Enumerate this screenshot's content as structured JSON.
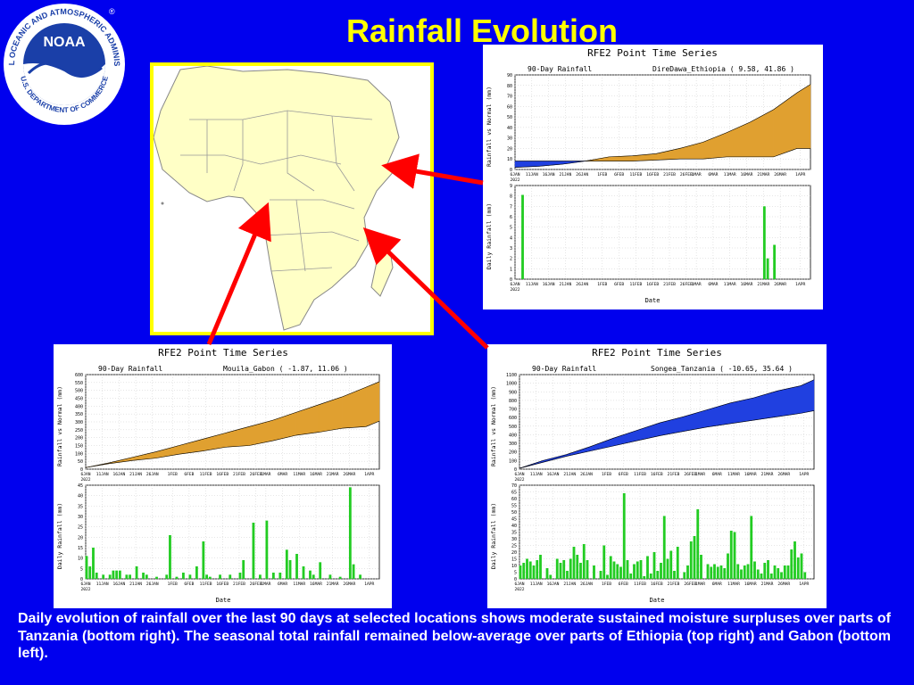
{
  "page": {
    "title": "Rainfall Evolution",
    "caption": "Daily evolution of rainfall over the last 90 days at selected locations shows moderate sustained moisture surpluses over parts of Tanzania (bottom right). The seasonal total rainfall remained below-average over parts of Ethiopia (top right) and Gabon (bottom left).",
    "logo": {
      "text": "NATIONAL OCEANIC AND ATMOSPHERIC ADMINISTRATION",
      "bottom_text": "U.S. DEPARTMENT OF COMMERCE",
      "center": "NOAA",
      "mark": "®"
    },
    "map_icon": "africa-map"
  },
  "colors": {
    "background": "#0000ee",
    "title": "#ffff00",
    "map_frame": "#ffff00",
    "land": "#ffffc6",
    "arrow": "#ff0000",
    "deficit_fill": "#e0a030",
    "surplus_fill": "#2040e0",
    "daily_bar": "#22cc22"
  },
  "chart_data": [
    {
      "id": "ethiopia",
      "type": "area",
      "panel_title": "RFE2 Point Time Series",
      "subtitle_left": "90-Day Rainfall",
      "location": "DireDawa_Ethiopia  ( 9.58, 41.86 )",
      "top": {
        "ylabel": "Rainfall vs Normal (mm)",
        "ylim": [
          0,
          90
        ],
        "yticks": [
          "0",
          "10",
          "20",
          "30",
          "40",
          "50",
          "60",
          "70",
          "80",
          "90"
        ],
        "dates": [
          "6JAN",
          "13JAN",
          "20JAN",
          "27JAN",
          "3FEB",
          "10FEB",
          "17FEB",
          "24FEB",
          "3MAR",
          "10MAR",
          "17MAR",
          "24MAR",
          "31MAR",
          "5APR"
        ],
        "actual": [
          8,
          8,
          8,
          8,
          8,
          8,
          9,
          10,
          10,
          12,
          12,
          12,
          20,
          20
        ],
        "normal": [
          2,
          3,
          5,
          8,
          12,
          13,
          15,
          20,
          26,
          35,
          45,
          57,
          73,
          81
        ]
      },
      "bottom": {
        "ylabel": "Daily Rainfall (mm)",
        "ylim": [
          0,
          9
        ],
        "yticks": [
          "0",
          "1",
          "2",
          "3",
          "4",
          "5",
          "6",
          "7",
          "8",
          "9"
        ],
        "days": [
          2,
          74,
          75,
          77
        ],
        "values": [
          8.1,
          7.0,
          2.0,
          3.3
        ]
      },
      "xlabel": "Date",
      "xticks": [
        "6JAN",
        "11JAN",
        "16JAN",
        "21JAN",
        "26JAN",
        "1FEB",
        "6FEB",
        "11FEB",
        "16FEB",
        "21FEB",
        "26FEB",
        "1MAR",
        "6MAR",
        "11MAR",
        "16MAR",
        "21MAR",
        "26MAR",
        "1APR"
      ],
      "xtick_year": "2022",
      "xtick_days": [
        0,
        5,
        10,
        15,
        20,
        26,
        31,
        36,
        41,
        46,
        51,
        54,
        59,
        64,
        69,
        74,
        79,
        85
      ]
    },
    {
      "id": "gabon",
      "type": "area",
      "panel_title": "RFE2 Point Time Series",
      "subtitle_left": "90-Day Rainfall",
      "location": "Mouila_Gabon  ( -1.87, 11.06 )",
      "top": {
        "ylabel": "Rainfall vs Normal (mm)",
        "ylim": [
          0,
          600
        ],
        "yticks": [
          "0",
          "50",
          "100",
          "150",
          "200",
          "250",
          "300",
          "350",
          "400",
          "450",
          "500",
          "550",
          "600"
        ],
        "dates": [
          "6JAN",
          "13JAN",
          "20JAN",
          "27JAN",
          "3FEB",
          "10FEB",
          "17FEB",
          "24FEB",
          "3MAR",
          "10MAR",
          "17MAR",
          "24MAR",
          "31MAR",
          "5APR"
        ],
        "actual": [
          10,
          35,
          55,
          70,
          95,
          115,
          140,
          150,
          180,
          215,
          235,
          260,
          270,
          305
        ],
        "normal": [
          10,
          40,
          75,
          110,
          150,
          190,
          230,
          270,
          310,
          360,
          410,
          460,
          520,
          555
        ]
      },
      "bottom": {
        "ylabel": "Daily Rainfall (mm)",
        "ylim": [
          0,
          45
        ],
        "yticks": [
          "0",
          "5",
          "10",
          "15",
          "20",
          "25",
          "30",
          "35",
          "40",
          "45"
        ],
        "days": [
          0,
          1,
          2,
          3,
          5,
          7,
          8,
          9,
          10,
          12,
          13,
          15,
          17,
          18,
          21,
          24,
          25,
          27,
          29,
          31,
          33,
          35,
          36,
          37,
          40,
          43,
          46,
          47,
          50,
          52,
          54,
          56,
          58,
          60,
          61,
          63,
          65,
          67,
          68,
          70,
          73,
          76,
          79,
          80,
          82
        ],
        "values": [
          11,
          6,
          15,
          3,
          2,
          2,
          4,
          4,
          4,
          2,
          2,
          6,
          3,
          2,
          1,
          2,
          21,
          1,
          3,
          2,
          6,
          18,
          2,
          1,
          2,
          2,
          3,
          9,
          27,
          2,
          28,
          3,
          3,
          14,
          9,
          12,
          6,
          4,
          2,
          8,
          2,
          1,
          44,
          7,
          2
        ]
      },
      "xlabel": "Date",
      "xticks": [
        "6JAN",
        "11JAN",
        "16JAN",
        "21JAN",
        "26JAN",
        "1FEB",
        "6FEB",
        "11FEB",
        "16FEB",
        "21FEB",
        "26FEB",
        "1MAR",
        "6MAR",
        "11MAR",
        "16MAR",
        "21MAR",
        "26MAR",
        "1APR"
      ],
      "xtick_year": "2022",
      "xtick_days": [
        0,
        5,
        10,
        15,
        20,
        26,
        31,
        36,
        41,
        46,
        51,
        54,
        59,
        64,
        69,
        74,
        79,
        85
      ]
    },
    {
      "id": "tanzania",
      "type": "area",
      "panel_title": "RFE2 Point Time Series",
      "subtitle_left": "90-Day Rainfall",
      "location": "Songea_Tanzania  ( -10.65, 35.64 )",
      "top": {
        "ylabel": "Rainfall vs Normal (mm)",
        "ylim": [
          0,
          1100
        ],
        "yticks": [
          "0",
          "100",
          "200",
          "300",
          "400",
          "500",
          "600",
          "700",
          "800",
          "900",
          "1000",
          "1100"
        ],
        "dates": [
          "6JAN",
          "13JAN",
          "20JAN",
          "27JAN",
          "3FEB",
          "10FEB",
          "17FEB",
          "24FEB",
          "3MAR",
          "10MAR",
          "17MAR",
          "24MAR",
          "31MAR",
          "5APR"
        ],
        "actual": [
          10,
          100,
          170,
          260,
          360,
          450,
          540,
          610,
          690,
          770,
          830,
          910,
          970,
          1040
        ],
        "normal": [
          10,
          80,
          150,
          210,
          270,
          330,
          390,
          440,
          490,
          530,
          570,
          610,
          650,
          680
        ]
      },
      "bottom": {
        "ylabel": "Daily Rainfall (mm)",
        "ylim": [
          0,
          70
        ],
        "yticks": [
          "0",
          "5",
          "10",
          "15",
          "20",
          "25",
          "30",
          "35",
          "40",
          "45",
          "50",
          "55",
          "60",
          "65",
          "70"
        ],
        "days": [
          0,
          1,
          2,
          3,
          4,
          5,
          6,
          8,
          9,
          11,
          12,
          13,
          14,
          15,
          16,
          17,
          18,
          19,
          20,
          22,
          24,
          25,
          26,
          27,
          28,
          29,
          30,
          31,
          32,
          33,
          34,
          35,
          36,
          37,
          38,
          39,
          40,
          41,
          42,
          43,
          44,
          45,
          46,
          47,
          49,
          50,
          51,
          52,
          53,
          54,
          56,
          57,
          58,
          59,
          60,
          61,
          62,
          63,
          64,
          65,
          66,
          67,
          68,
          69,
          70,
          71,
          72,
          73,
          74,
          75,
          76,
          77,
          78,
          79,
          80,
          81,
          82,
          83,
          84,
          85
        ],
        "values": [
          10,
          12,
          15,
          13,
          10,
          14,
          18,
          8,
          3,
          15,
          12,
          14,
          6,
          15,
          24,
          18,
          12,
          26,
          14,
          10,
          6,
          25,
          3,
          17,
          13,
          11,
          9,
          64,
          14,
          4,
          11,
          13,
          14,
          2,
          17,
          4,
          20,
          6,
          12,
          47,
          15,
          21,
          6,
          24,
          5,
          10,
          28,
          32,
          52,
          18,
          11,
          9,
          11,
          9,
          10,
          8,
          19,
          36,
          35,
          11,
          7,
          10,
          11,
          47,
          13,
          7,
          4,
          12,
          14,
          4,
          10,
          8,
          5,
          10,
          10,
          22,
          28,
          16,
          19,
          5
        ]
      },
      "xlabel": "Date",
      "xticks": [
        "6JAN",
        "11JAN",
        "16JAN",
        "21JAN",
        "26JAN",
        "1FEB",
        "6FEB",
        "11FEB",
        "16FEB",
        "21FEB",
        "26FEB",
        "1MAR",
        "6MAR",
        "11MAR",
        "16MAR",
        "21MAR",
        "26MAR",
        "1APR"
      ],
      "xtick_year": "2022",
      "xtick_days": [
        0,
        5,
        10,
        15,
        20,
        26,
        31,
        36,
        41,
        46,
        51,
        54,
        59,
        64,
        69,
        74,
        79,
        85
      ]
    }
  ]
}
